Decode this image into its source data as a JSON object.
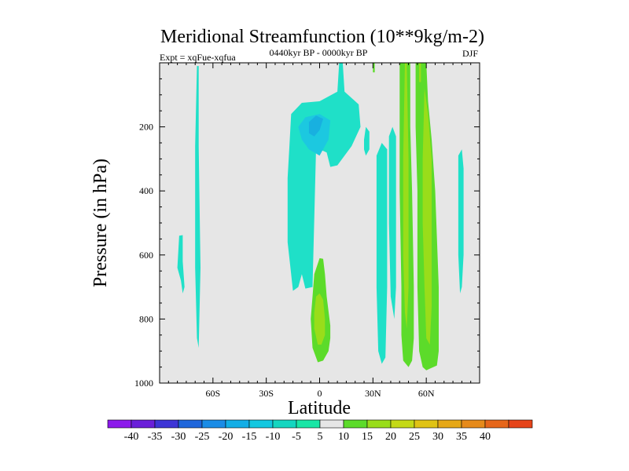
{
  "chart_data": {
    "type": "contour",
    "title": "Meridional Streamfunction (10**9kg/m-2)",
    "left_subtitle": "Expt = xqFue-xqfua",
    "center_subtitle": "0440kyr BP - 0000kyr BP",
    "right_subtitle": "DJF",
    "xlabel": "Latitude",
    "ylabel": "Pressure (in hPa)",
    "xlim": [
      -90,
      90
    ],
    "ylim": [
      1000,
      0
    ],
    "x_ticks": [
      {
        "value": -60,
        "label": "60S"
      },
      {
        "value": -30,
        "label": "30S"
      },
      {
        "value": 0,
        "label": "0"
      },
      {
        "value": 30,
        "label": "30N"
      },
      {
        "value": 60,
        "label": "60N"
      }
    ],
    "y_ticks": [
      {
        "value": 200,
        "label": "200"
      },
      {
        "value": 400,
        "label": "400"
      },
      {
        "value": 600,
        "label": "600"
      },
      {
        "value": 800,
        "label": "800"
      },
      {
        "value": 1000,
        "label": "1000"
      }
    ],
    "background_color": "#e6e6e6",
    "colorbar": {
      "labels": [
        "-40",
        "-35",
        "-30",
        "-25",
        "-20",
        "-15",
        "-10",
        "-5",
        "5",
        "10",
        "15",
        "20",
        "25",
        "30",
        "35",
        "40"
      ],
      "colors": [
        "#8c1aeb",
        "#6a1fd9",
        "#3d35d6",
        "#1f66db",
        "#1a8ce6",
        "#12aee6",
        "#12c8e0",
        "#14d6c0",
        "#19e6a6",
        "#e6e6e6",
        "#5cdb2a",
        "#99dd1a",
        "#c4d916",
        "#e0c314",
        "#e6a817",
        "#e68a1a",
        "#e6661a",
        "#e6441a"
      ]
    },
    "regions": [
      {
        "level": -10,
        "color": "#1fe0c8",
        "points": [
          [
            -79,
            540
          ],
          [
            -77,
            538
          ],
          [
            -77,
            620
          ],
          [
            -76,
            700
          ],
          [
            -77,
            720
          ],
          [
            -78,
            680
          ],
          [
            -80,
            640
          ]
        ]
      },
      {
        "level": -10,
        "color": "#1fe0c8",
        "points": [
          [
            -69,
            10
          ],
          [
            -68,
            10
          ],
          [
            -68,
            260
          ],
          [
            -67,
            640
          ],
          [
            -68,
            890
          ],
          [
            -69,
            860
          ],
          [
            -70,
            640
          ],
          [
            -70,
            260
          ]
        ]
      },
      {
        "level": -10,
        "color": "#1fe0c8",
        "points": [
          [
            -16,
            160
          ],
          [
            -10,
            125
          ],
          [
            0,
            120
          ],
          [
            10,
            90
          ],
          [
            11,
            0
          ],
          [
            13,
            0
          ],
          [
            14,
            90
          ],
          [
            22,
            130
          ],
          [
            23,
            200
          ],
          [
            18,
            260
          ],
          [
            10,
            320
          ],
          [
            6,
            325
          ],
          [
            4,
            280
          ],
          [
            -2,
            265
          ],
          [
            -4,
            700
          ],
          [
            -8,
            705
          ],
          [
            -10,
            660
          ],
          [
            -12,
            700
          ],
          [
            -15,
            712
          ],
          [
            -16,
            660
          ],
          [
            -18,
            560
          ],
          [
            -18,
            360
          ],
          [
            -17,
            260
          ]
        ]
      },
      {
        "level": -15,
        "color": "#1cc8e0",
        "points": [
          [
            -12,
            200
          ],
          [
            -8,
            170
          ],
          [
            0,
            160
          ],
          [
            6,
            180
          ],
          [
            5,
            240
          ],
          [
            0,
            290
          ],
          [
            -6,
            270
          ],
          [
            -10,
            240
          ]
        ]
      },
      {
        "level": -20,
        "color": "#18b0e0",
        "points": [
          [
            -6,
            185
          ],
          [
            -2,
            165
          ],
          [
            2,
            175
          ],
          [
            0,
            210
          ],
          [
            -3,
            230
          ],
          [
            -6,
            220
          ]
        ]
      },
      {
        "level": -10,
        "color": "#1fe0c8",
        "points": [
          [
            25,
            240
          ],
          [
            26,
            200
          ],
          [
            28,
            215
          ],
          [
            28,
            270
          ],
          [
            26,
            290
          ],
          [
            25,
            270
          ]
        ]
      },
      {
        "level": -10,
        "color": "#1fe0c8",
        "points": [
          [
            32,
            290
          ],
          [
            35,
            250
          ],
          [
            38,
            270
          ],
          [
            38,
            400
          ],
          [
            38,
            700
          ],
          [
            37,
            920
          ],
          [
            35,
            940
          ],
          [
            33,
            900
          ],
          [
            32,
            700
          ],
          [
            32,
            400
          ]
        ]
      },
      {
        "level": -10,
        "color": "#1fe0c8",
        "points": [
          [
            39,
            230
          ],
          [
            41,
            200
          ],
          [
            43,
            230
          ],
          [
            43,
            700
          ],
          [
            42,
            800
          ],
          [
            40,
            730
          ],
          [
            39,
            500
          ]
        ]
      },
      {
        "level": -10,
        "color": "#1fe0c8",
        "points": [
          [
            78,
            290
          ],
          [
            80,
            270
          ],
          [
            81,
            330
          ],
          [
            81,
            600
          ],
          [
            80,
            700
          ],
          [
            79,
            720
          ],
          [
            78,
            600
          ],
          [
            78,
            400
          ]
        ]
      },
      {
        "level": 5,
        "color": "#5cdb2a",
        "points": [
          [
            -3,
            660
          ],
          [
            0,
            610
          ],
          [
            2,
            612
          ],
          [
            3,
            660
          ],
          [
            4,
            730
          ],
          [
            6,
            820
          ],
          [
            6,
            860
          ],
          [
            5,
            900
          ],
          [
            2,
            930
          ],
          [
            -1,
            935
          ],
          [
            -4,
            890
          ],
          [
            -5,
            800
          ],
          [
            -4,
            730
          ]
        ]
      },
      {
        "level": 10,
        "color": "#99dd1a",
        "points": [
          [
            -2,
            730
          ],
          [
            0,
            720
          ],
          [
            2,
            740
          ],
          [
            3,
            800
          ],
          [
            3,
            850
          ],
          [
            1,
            880
          ],
          [
            -1,
            880
          ],
          [
            -3,
            830
          ],
          [
            -3,
            780
          ]
        ]
      },
      {
        "level": 5,
        "color": "#5cdb2a",
        "points": [
          [
            30,
            0
          ],
          [
            31,
            0
          ],
          [
            31,
            30
          ],
          [
            30,
            30
          ]
        ]
      },
      {
        "level": 5,
        "color": "#5cdb2a",
        "points": [
          [
            45,
            0
          ],
          [
            51,
            0
          ],
          [
            51,
            200
          ],
          [
            52,
            400
          ],
          [
            53,
            700
          ],
          [
            53,
            860
          ],
          [
            52,
            930
          ],
          [
            50,
            950
          ],
          [
            47,
            930
          ],
          [
            46,
            850
          ],
          [
            46,
            700
          ],
          [
            45,
            400
          ],
          [
            45,
            200
          ]
        ]
      },
      {
        "level": 10,
        "color": "#99dd1a",
        "points": [
          [
            48,
            0
          ],
          [
            49,
            0
          ],
          [
            50,
            300
          ],
          [
            50,
            700
          ],
          [
            49,
            830
          ],
          [
            48,
            780
          ],
          [
            47,
            600
          ],
          [
            47,
            300
          ]
        ]
      },
      {
        "level": 5,
        "color": "#5cdb2a",
        "points": [
          [
            54,
            0
          ],
          [
            60,
            0
          ],
          [
            61,
            120
          ],
          [
            63,
            240
          ],
          [
            65,
            400
          ],
          [
            67,
            700
          ],
          [
            67,
            900
          ],
          [
            66,
            945
          ],
          [
            62,
            955
          ],
          [
            60,
            960
          ],
          [
            58,
            950
          ],
          [
            56,
            900
          ],
          [
            55,
            700
          ],
          [
            55,
            400
          ],
          [
            54,
            200
          ]
        ]
      },
      {
        "level": 10,
        "color": "#99dd1a",
        "points": [
          [
            59,
            80
          ],
          [
            61,
            160
          ],
          [
            63,
            300
          ],
          [
            63,
            500
          ],
          [
            63,
            760
          ],
          [
            62,
            880
          ],
          [
            60,
            860
          ],
          [
            59,
            700
          ],
          [
            58,
            500
          ],
          [
            58,
            300
          ]
        ]
      },
      {
        "level": 10,
        "color": "#99dd1a",
        "points": [
          [
            56,
            0
          ],
          [
            57,
            0
          ],
          [
            57,
            60
          ],
          [
            56,
            60
          ]
        ]
      }
    ]
  }
}
